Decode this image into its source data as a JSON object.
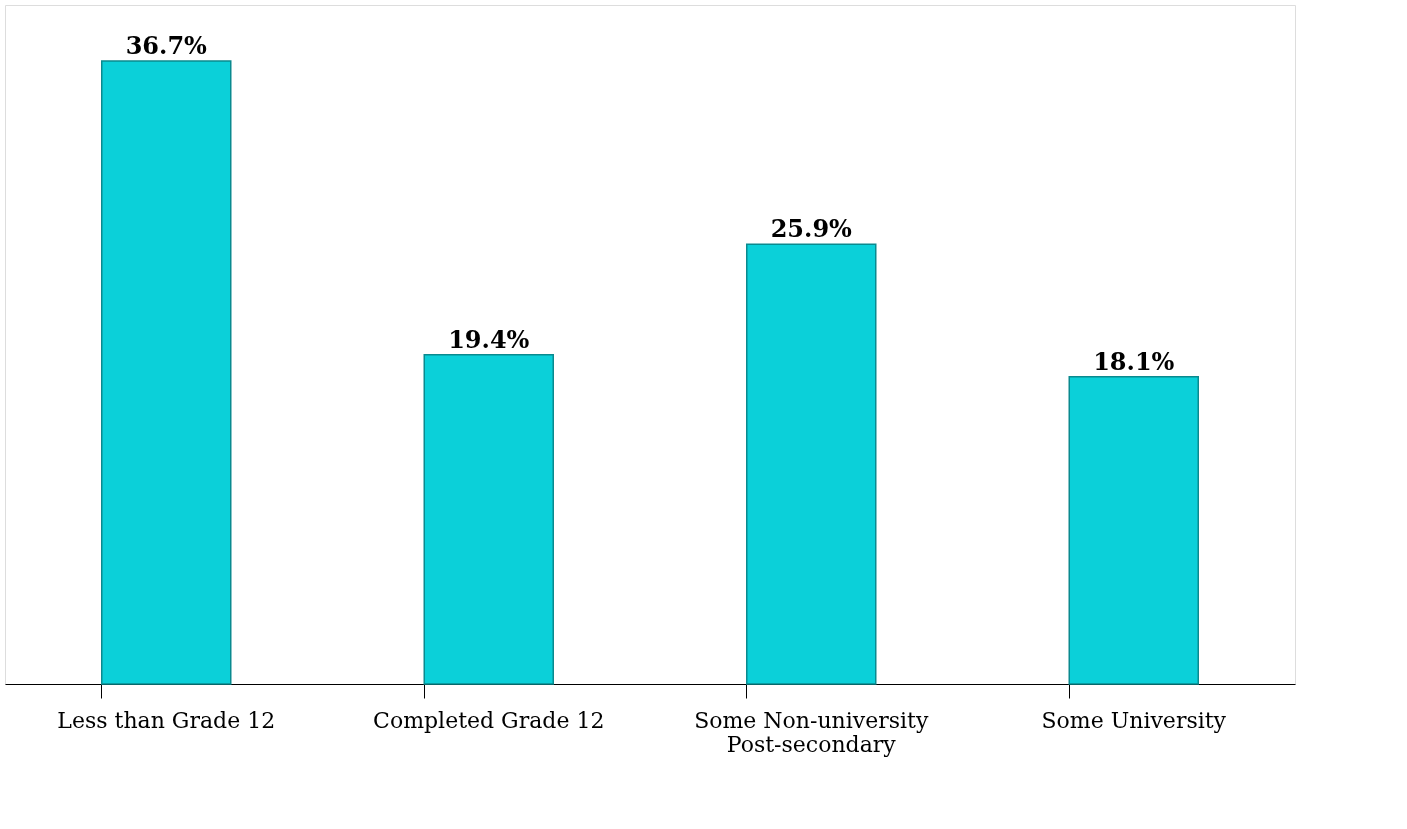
{
  "chart_data": {
    "type": "bar",
    "categories": [
      "Less than Grade 12",
      "Completed Grade 12",
      "Some Non-university Post-secondary",
      "Some University"
    ],
    "values": [
      36.7,
      19.4,
      25.9,
      18.1
    ],
    "value_labels": [
      "36.7%",
      "19.4%",
      "25.9%",
      "18.1%"
    ],
    "color": "#0bd0d9",
    "grid": false
  }
}
